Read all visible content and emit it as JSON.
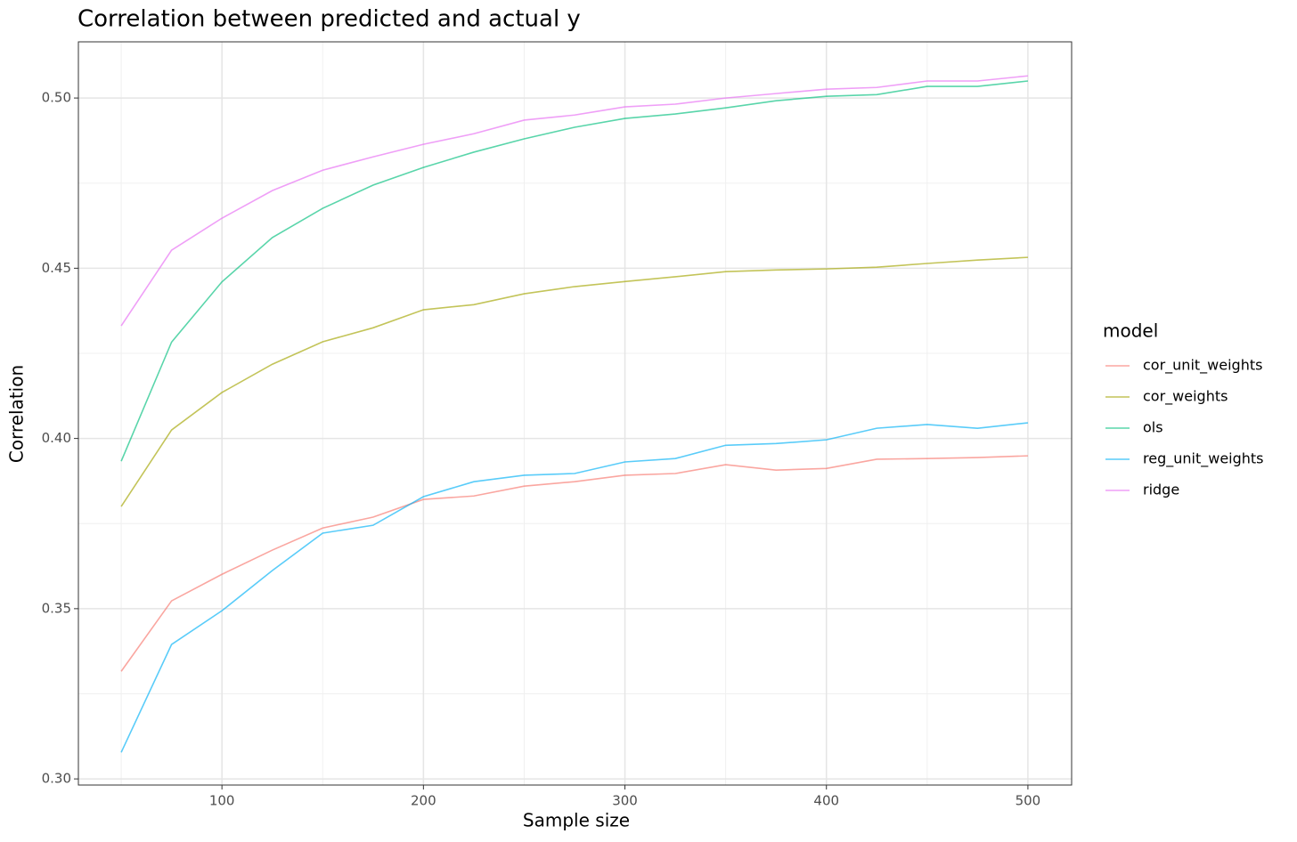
{
  "chart_data": {
    "type": "line",
    "title": "Correlation between predicted and actual y",
    "x_label": "Sample size",
    "y_label": "Correlation",
    "legend_title": "model",
    "x": [
      50,
      75,
      100,
      125,
      150,
      175,
      200,
      225,
      250,
      275,
      300,
      325,
      350,
      375,
      400,
      425,
      450,
      475,
      500
    ],
    "series": [
      {
        "name": "cor_unit_weights",
        "color": "#F8766D",
        "values": [
          0.3316,
          0.3523,
          0.3601,
          0.3672,
          0.3737,
          0.3769,
          0.3821,
          0.3831,
          0.386,
          0.3873,
          0.3892,
          0.3897,
          0.3923,
          0.3907,
          0.3912,
          0.3939,
          0.3941,
          0.3944,
          0.3949
        ]
      },
      {
        "name": "cor_weights",
        "color": "#A3A500",
        "values": [
          0.38,
          0.4025,
          0.4135,
          0.4218,
          0.4284,
          0.4325,
          0.4378,
          0.4393,
          0.4425,
          0.4446,
          0.4461,
          0.4475,
          0.449,
          0.4495,
          0.4498,
          0.4503,
          0.4514,
          0.4524,
          0.4532
        ]
      },
      {
        "name": "ols",
        "color": "#00BF7D",
        "values": [
          0.3933,
          0.4283,
          0.446,
          0.459,
          0.4676,
          0.4744,
          0.4796,
          0.4841,
          0.488,
          0.4914,
          0.494,
          0.4953,
          0.4971,
          0.4992,
          0.5005,
          0.501,
          0.5034,
          0.5034,
          0.505
        ]
      },
      {
        "name": "reg_unit_weights",
        "color": "#00B0F6",
        "values": [
          0.3078,
          0.3395,
          0.3494,
          0.3612,
          0.3722,
          0.3745,
          0.3829,
          0.3873,
          0.3892,
          0.3897,
          0.3931,
          0.3941,
          0.398,
          0.3985,
          0.3996,
          0.403,
          0.4041,
          0.403,
          0.4046
        ]
      },
      {
        "name": "ridge",
        "color": "#E76BF3",
        "values": [
          0.4331,
          0.4553,
          0.4647,
          0.4728,
          0.4788,
          0.4827,
          0.4864,
          0.4895,
          0.4935,
          0.495,
          0.4974,
          0.4982,
          0.5,
          0.5013,
          0.5026,
          0.5031,
          0.505,
          0.505,
          0.5065
        ]
      }
    ],
    "xlim": [
      28.75,
      521.7
    ],
    "ylim": [
      0.2982,
      0.5165
    ],
    "xticks": [
      100,
      200,
      300,
      400,
      500
    ],
    "yticks": [
      {
        "value": 0.3,
        "label": "0.30"
      },
      {
        "value": 0.35,
        "label": "0.35"
      },
      {
        "value": 0.4,
        "label": "0.40"
      },
      {
        "value": 0.45,
        "label": "0.45"
      },
      {
        "value": 0.5,
        "label": "0.50"
      }
    ],
    "grid": true,
    "legend": "right"
  }
}
